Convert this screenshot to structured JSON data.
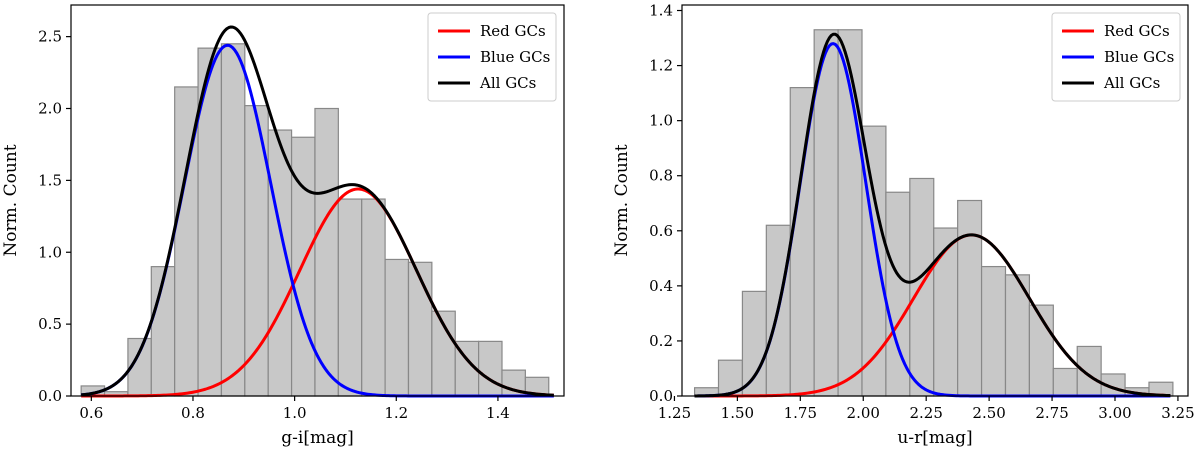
{
  "chart_data": [
    {
      "type": "bar",
      "title": "",
      "xlabel": "g-i[mag]",
      "ylabel": "Norm. Count",
      "xlim": [
        0.56,
        1.53
      ],
      "ylim": [
        0,
        2.72
      ],
      "xticks": [
        0.6,
        0.8,
        1.0,
        1.2,
        1.4
      ],
      "xtick_labels": [
        "0.6",
        "0.8",
        "1.0",
        "1.2",
        "1.4"
      ],
      "yticks": [
        0.0,
        0.5,
        1.0,
        1.5,
        2.0,
        2.5
      ],
      "ytick_labels": [
        "0.0",
        "0.5",
        "1.0",
        "1.5",
        "2.0",
        "2.5"
      ],
      "legend_position": "top-right",
      "histogram": {
        "bin_edges": [
          0.58,
          0.626,
          0.672,
          0.718,
          0.764,
          0.81,
          0.856,
          0.902,
          0.948,
          0.994,
          1.04,
          1.086,
          1.132,
          1.178,
          1.224,
          1.27,
          1.316,
          1.362,
          1.408,
          1.454,
          1.5
        ],
        "values": [
          0.07,
          0.03,
          0.4,
          0.9,
          2.15,
          2.42,
          2.45,
          2.02,
          1.85,
          1.8,
          2.0,
          1.37,
          1.37,
          0.95,
          0.93,
          0.59,
          0.38,
          0.38,
          0.18,
          0.13
        ],
        "color": "#c8c8c8",
        "edge_color": "#888888"
      },
      "series": [
        {
          "name": "Red GCs",
          "color": "#ff0000",
          "mu": 1.125,
          "sigma": 0.115,
          "amplitude": 1.44
        },
        {
          "name": "Blue GCs",
          "color": "#0000ff",
          "mu": 0.868,
          "sigma": 0.085,
          "amplitude": 2.44
        },
        {
          "name": "All GCs",
          "color": "#000000",
          "components": [
            "Red GCs",
            "Blue GCs"
          ]
        }
      ],
      "curve_range": [
        0.58,
        1.51
      ]
    },
    {
      "type": "bar",
      "title": "",
      "xlabel": "u-r[mag]",
      "ylabel": "Norm. Count",
      "xlim": [
        1.28,
        3.29
      ],
      "ylim": [
        0,
        1.42
      ],
      "xticks": [
        1.25,
        1.5,
        1.75,
        2.0,
        2.25,
        2.5,
        2.75,
        3.0,
        3.25
      ],
      "xtick_labels": [
        "1.25",
        "1.50",
        "1.75",
        "2.00",
        "2.25",
        "2.50",
        "2.75",
        "3.00",
        "3.25"
      ],
      "yticks": [
        0.0,
        0.2,
        0.4,
        0.6,
        0.8,
        1.0,
        1.2,
        1.4
      ],
      "ytick_labels": [
        "0.0",
        "0.2",
        "0.4",
        "0.6",
        "0.8",
        "1.0",
        "1.2",
        "1.4"
      ],
      "legend_position": "top-right",
      "histogram": {
        "bin_edges": [
          1.33,
          1.425,
          1.52,
          1.615,
          1.71,
          1.805,
          1.9,
          1.995,
          2.09,
          2.185,
          2.28,
          2.375,
          2.47,
          2.565,
          2.66,
          2.755,
          2.85,
          2.945,
          3.04,
          3.135,
          3.23
        ],
        "values": [
          0.03,
          0.13,
          0.38,
          0.62,
          1.12,
          1.33,
          1.33,
          0.98,
          0.74,
          0.79,
          0.61,
          0.71,
          0.47,
          0.44,
          0.33,
          0.1,
          0.18,
          0.08,
          0.03,
          0.05
        ],
        "color": "#c8c8c8",
        "edge_color": "#888888"
      },
      "series": [
        {
          "name": "Red GCs",
          "color": "#ff0000",
          "mu": 2.43,
          "sigma": 0.23,
          "amplitude": 0.585
        },
        {
          "name": "Blue GCs",
          "color": "#0000ff",
          "mu": 1.88,
          "sigma": 0.13,
          "amplitude": 1.28
        },
        {
          "name": "All GCs",
          "color": "#000000",
          "components": [
            "Red GCs",
            "Blue GCs"
          ]
        }
      ],
      "curve_range": [
        1.33,
        3.22
      ]
    }
  ]
}
